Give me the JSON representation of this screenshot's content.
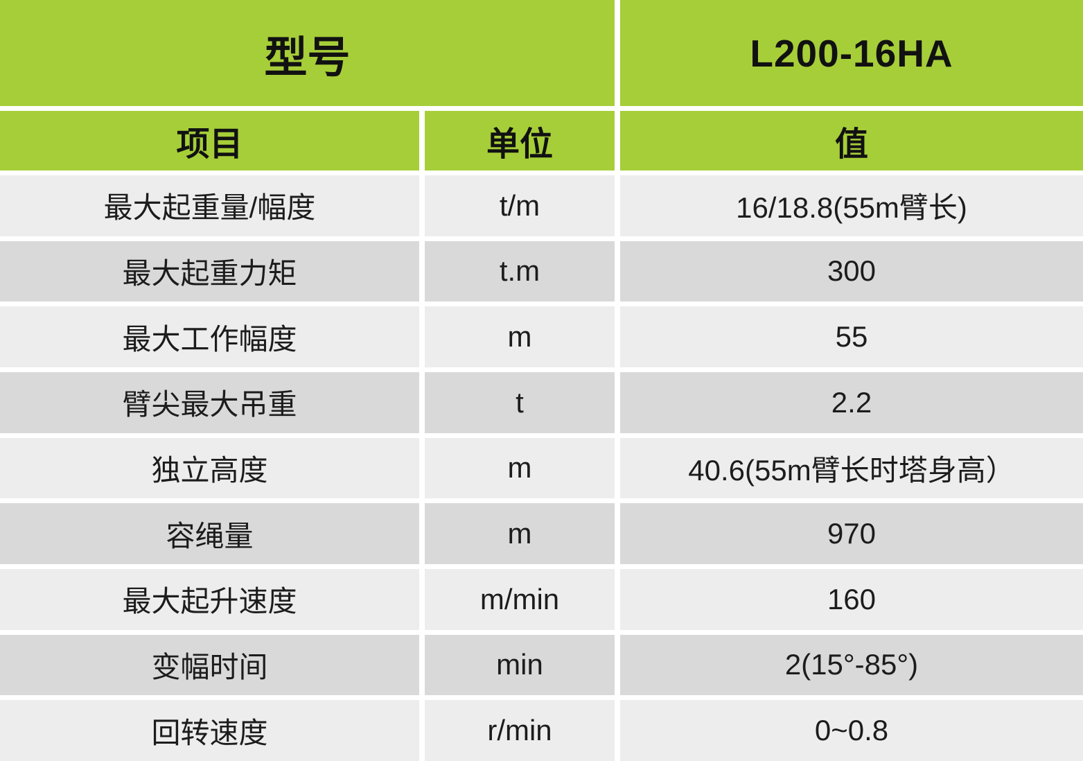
{
  "table": {
    "model_label": "型号",
    "model_value": "L200-16HA",
    "columns": [
      "项目",
      "单位",
      "值"
    ],
    "rows": [
      {
        "item": "最大起重量/幅度",
        "unit": "t/m",
        "value": "16/18.8(55m臂长)"
      },
      {
        "item": "最大起重力矩",
        "unit": "t.m",
        "value": "300"
      },
      {
        "item": "最大工作幅度",
        "unit": "m",
        "value": "55"
      },
      {
        "item": "臂尖最大吊重",
        "unit": "t",
        "value": "2.2"
      },
      {
        "item": "独立高度",
        "unit": "m",
        "value": "40.6(55m臂长时塔身高）"
      },
      {
        "item": "容绳量",
        "unit": "m",
        "value": "970"
      },
      {
        "item": "最大起升速度",
        "unit": "m/min",
        "value": "160"
      },
      {
        "item": "变幅时间",
        "unit": "min",
        "value": "2(15°-85°)"
      },
      {
        "item": "回转速度",
        "unit": "r/min",
        "value": "0~0.8"
      }
    ],
    "colors": {
      "header_green": "#a6ce39",
      "row_light": "#ededed",
      "row_dark": "#d9d9d9",
      "gutter": "#ffffff",
      "text": "#1c1c1c"
    }
  }
}
